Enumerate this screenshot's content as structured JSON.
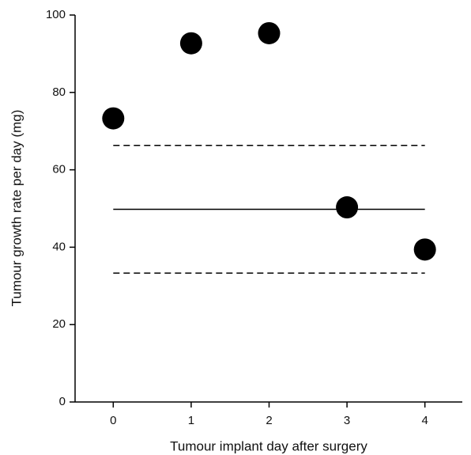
{
  "chart_data": {
    "type": "scatter",
    "x_label": "Tumour implant day after surgery",
    "y_label": "Tumour growth rate per day (mg)",
    "x": [
      0,
      1,
      2,
      3,
      4
    ],
    "values": [
      73.3,
      92.7,
      95.3,
      50.3,
      39.4
    ],
    "color": "#000000",
    "xlim": [
      -0.49,
      4.48
    ],
    "ylim": [
      0,
      100
    ],
    "xticks": [
      0,
      1,
      2,
      3,
      4
    ],
    "yticks": [
      0,
      20,
      40,
      60,
      80,
      100
    ],
    "reference_lines": [
      {
        "value": 66.3,
        "style": "dashed"
      },
      {
        "value": 49.8,
        "style": "solid"
      },
      {
        "value": 33.3,
        "style": "dashed"
      }
    ],
    "grid": false
  }
}
